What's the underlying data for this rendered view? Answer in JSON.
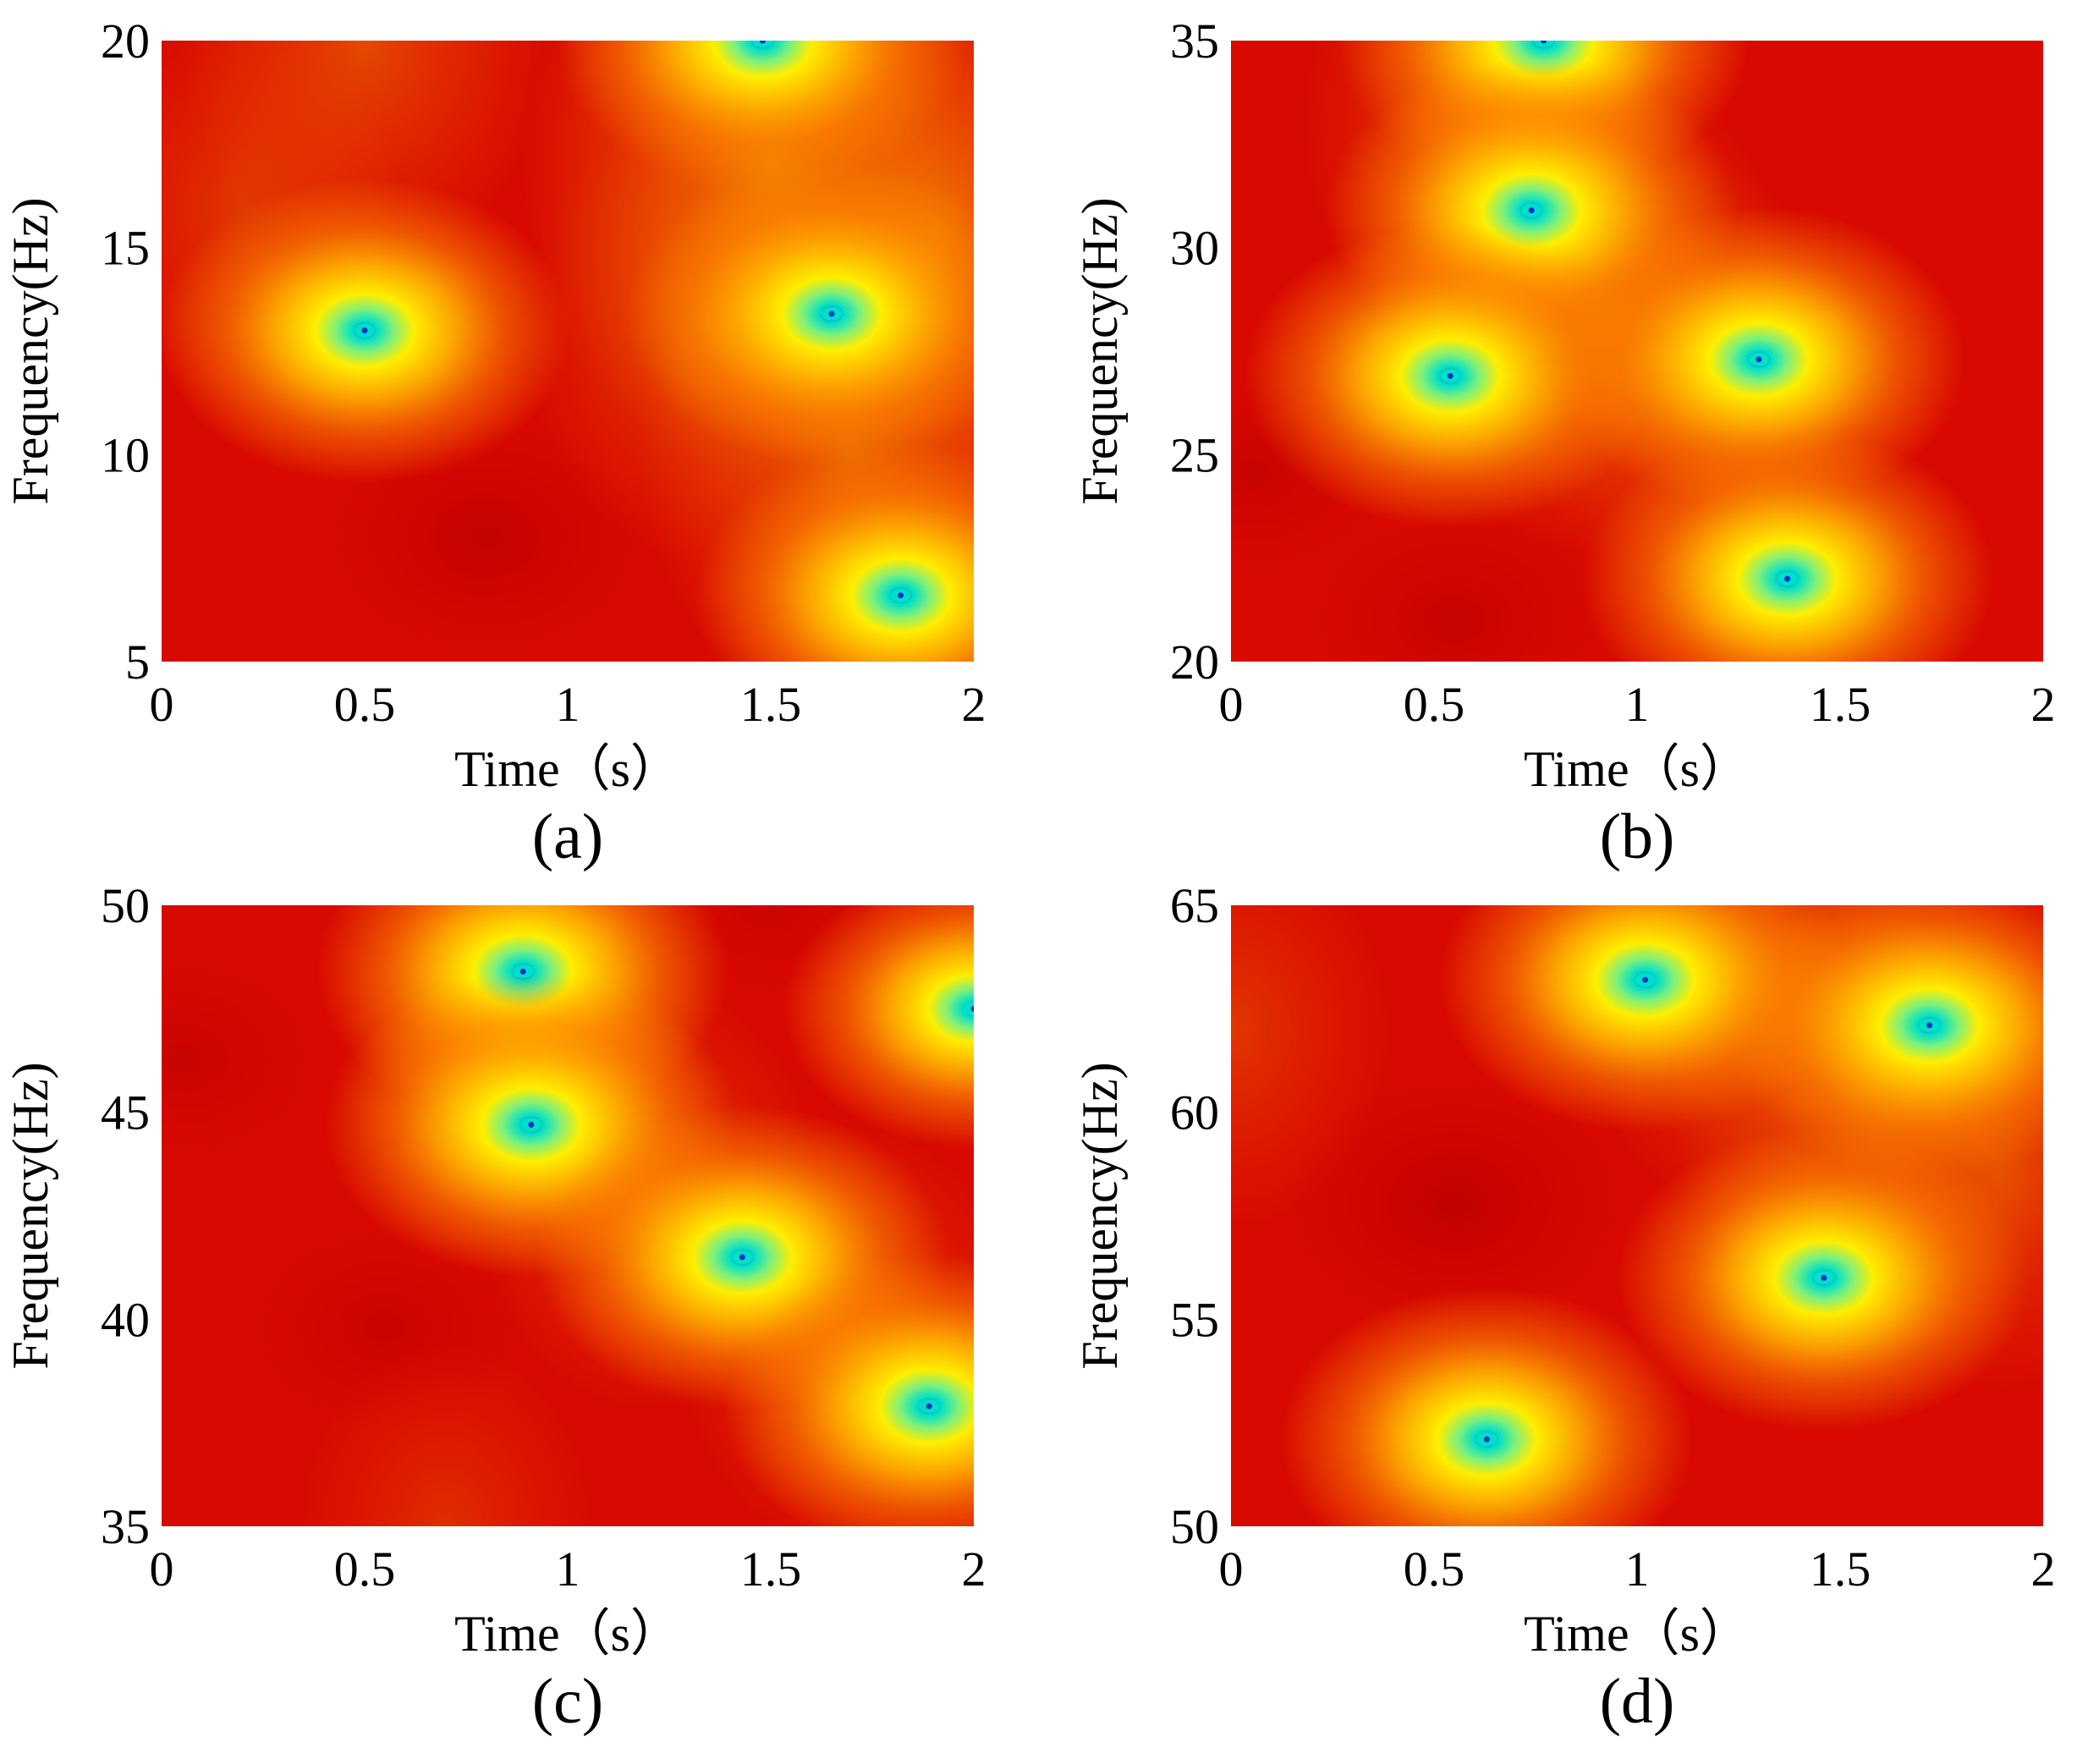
{
  "colors": {
    "background": "#d80a00",
    "low": "#cc0000",
    "mid": "#ff8800",
    "high": "#ffee00",
    "peak": "#00e0c8",
    "peak_core": "#0033cc"
  },
  "chart_data": [
    {
      "type": "heatmap",
      "panel": "(a)",
      "xlabel": "Time（s）",
      "ylabel": "Frequency(Hz)",
      "xlim": [
        0,
        2
      ],
      "ylim": [
        5,
        20
      ],
      "xticks": [
        "0",
        "0.5",
        "1",
        "1.5",
        "2"
      ],
      "yticks": [
        "5",
        "10",
        "15",
        "20"
      ],
      "peaks": [
        {
          "t": 0.5,
          "f": 13.0,
          "intensity": 1.0
        },
        {
          "t": 1.48,
          "f": 20.0,
          "intensity": 1.0
        },
        {
          "t": 1.65,
          "f": 13.4,
          "intensity": 1.0
        },
        {
          "t": 1.82,
          "f": 6.6,
          "intensity": 1.0
        }
      ],
      "moderate_regions": [
        {
          "t": 1.5,
          "f": 17.0,
          "intensity": 0.6
        },
        {
          "t": 1.9,
          "f": 15.0,
          "intensity": 0.55
        },
        {
          "t": 1.7,
          "f": 10.0,
          "intensity": 0.45
        },
        {
          "t": 1.35,
          "f": 13.0,
          "intensity": 0.35
        },
        {
          "t": 0.5,
          "f": 20.0,
          "intensity": 0.35
        },
        {
          "t": 0.2,
          "f": 16.0,
          "intensity": 0.25
        }
      ],
      "low_regions": [
        {
          "t": 0.8,
          "f": 8.0,
          "intensity": 0.4
        }
      ]
    },
    {
      "type": "heatmap",
      "panel": "(b)",
      "xlabel": "Time（s）",
      "ylabel": "Frequency(Hz)",
      "xlim": [
        0,
        2
      ],
      "ylim": [
        20,
        35
      ],
      "xticks": [
        "0",
        "0.5",
        "1",
        "1.5",
        "2"
      ],
      "yticks": [
        "20",
        "25",
        "30",
        "35"
      ],
      "peaks": [
        {
          "t": 0.77,
          "f": 35.0,
          "intensity": 1.0
        },
        {
          "t": 0.74,
          "f": 30.9,
          "intensity": 1.0
        },
        {
          "t": 0.54,
          "f": 26.9,
          "intensity": 1.0
        },
        {
          "t": 1.3,
          "f": 27.3,
          "intensity": 1.0
        },
        {
          "t": 1.37,
          "f": 22.0,
          "intensity": 1.0
        }
      ],
      "moderate_regions": [
        {
          "t": 0.9,
          "f": 28.5,
          "intensity": 0.4
        },
        {
          "t": 0.6,
          "f": 33.0,
          "intensity": 0.3
        },
        {
          "t": 1.1,
          "f": 27.0,
          "intensity": 0.3
        }
      ],
      "low_regions": [
        {
          "t": 0.55,
          "f": 21.0,
          "intensity": 0.35
        },
        {
          "t": 0.05,
          "f": 24.5,
          "intensity": 0.3
        }
      ]
    },
    {
      "type": "heatmap",
      "panel": "(c)",
      "xlabel": "Time（s）",
      "ylabel": "Frequency(Hz)",
      "xlim": [
        0,
        2
      ],
      "ylim": [
        35,
        50
      ],
      "xticks": [
        "0",
        "0.5",
        "1",
        "1.5",
        "2"
      ],
      "yticks": [
        "35",
        "40",
        "45",
        "50"
      ],
      "peaks": [
        {
          "t": 0.89,
          "f": 48.4,
          "intensity": 1.0
        },
        {
          "t": 0.91,
          "f": 44.7,
          "intensity": 1.0
        },
        {
          "t": 1.43,
          "f": 41.5,
          "intensity": 1.0
        },
        {
          "t": 1.89,
          "f": 37.9,
          "intensity": 1.0
        },
        {
          "t": 2.0,
          "f": 47.5,
          "intensity": 0.9
        }
      ],
      "moderate_regions": [
        {
          "t": 0.9,
          "f": 46.5,
          "intensity": 0.35
        },
        {
          "t": 1.2,
          "f": 43.0,
          "intensity": 0.3
        },
        {
          "t": 1.7,
          "f": 39.5,
          "intensity": 0.3
        },
        {
          "t": 0.7,
          "f": 35.0,
          "intensity": 0.2
        }
      ],
      "low_regions": [
        {
          "t": 0.05,
          "f": 46.3,
          "intensity": 0.3
        },
        {
          "t": 0.55,
          "f": 39.8,
          "intensity": 0.3
        },
        {
          "t": 1.5,
          "f": 50.0,
          "intensity": 0.25
        }
      ]
    },
    {
      "type": "heatmap",
      "panel": "(d)",
      "xlabel": "Time（s）",
      "ylabel": "Frequency(Hz)",
      "xlim": [
        0,
        2
      ],
      "ylim": [
        50,
        65
      ],
      "xticks": [
        "0",
        "0.5",
        "1",
        "1.5",
        "2"
      ],
      "yticks": [
        "50",
        "55",
        "60",
        "65"
      ],
      "peaks": [
        {
          "t": 1.02,
          "f": 63.2,
          "intensity": 1.0
        },
        {
          "t": 1.72,
          "f": 62.1,
          "intensity": 1.0
        },
        {
          "t": 1.46,
          "f": 56.0,
          "intensity": 1.0
        },
        {
          "t": 0.63,
          "f": 52.1,
          "intensity": 1.0
        }
      ],
      "moderate_regions": [
        {
          "t": 1.6,
          "f": 60.5,
          "intensity": 0.45
        },
        {
          "t": 1.3,
          "f": 63.0,
          "intensity": 0.35
        },
        {
          "t": 1.9,
          "f": 58.5,
          "intensity": 0.3
        },
        {
          "t": 0.0,
          "f": 62.0,
          "intensity": 0.25
        }
      ],
      "low_regions": [
        {
          "t": 0.55,
          "f": 57.8,
          "intensity": 0.45
        }
      ]
    }
  ]
}
